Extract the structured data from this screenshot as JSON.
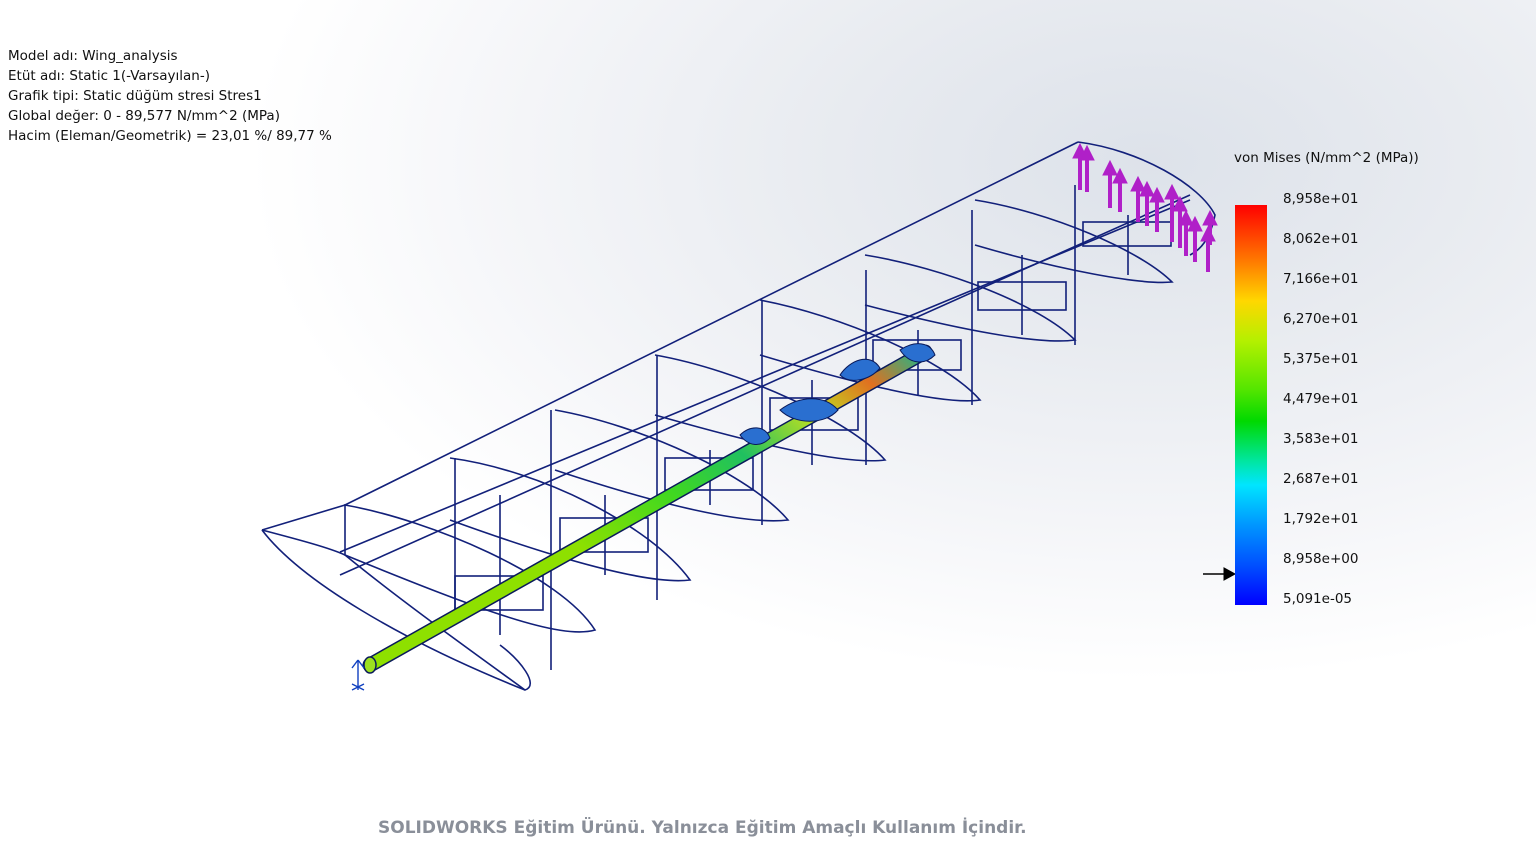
{
  "study_info": [
    "Model adı: Wing_analysis",
    "Etüt adı: Static 1(-Varsayılan-)",
    "Grafik tipi: Static düğüm stresi Stres1",
    "Global değer: 0 - 89,577 N/mm^2 (MPa)",
    "Hacim (Eleman/Geometrik) = 23,01 %/ 89,77 %"
  ],
  "legend": {
    "title": "von Mises (N/mm^2 (MPa))",
    "ticks": [
      "8,958e+01",
      "8,062e+01",
      "7,166e+01",
      "6,270e+01",
      "5,375e+01",
      "4,479e+01",
      "3,583e+01",
      "2,687e+01",
      "1,792e+01",
      "8,958e+00",
      "5,091e-05"
    ],
    "colors": [
      "#ff0000",
      "#ff7a00",
      "#ffd700",
      "#b4f000",
      "#55e600",
      "#00d900",
      "#00e6a0",
      "#00e5ff",
      "#0096ff",
      "#0050ff",
      "#0000ff"
    ],
    "yield_marker_value": "8,958e+00"
  },
  "colors": {
    "wireframe": "#12207a",
    "load_arrows": "#b020c8",
    "watermark": "#8a8f99"
  },
  "watermark": "SOLIDWORKS Eğitim Ürünü. Yalnızca Eğitim Amaçlı Kullanım İçindir."
}
